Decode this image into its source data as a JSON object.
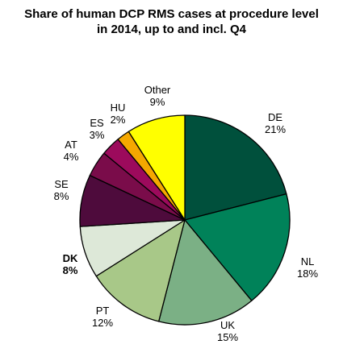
{
  "chart_data": {
    "type": "pie",
    "title_lines": [
      "Share of human DCP RMS cases at procedure level",
      "in 2014, up to and incl. Q4"
    ],
    "slices": [
      {
        "name": "DE",
        "value": 21,
        "label": "21%",
        "color": "#00503c",
        "bold": false
      },
      {
        "name": "NL",
        "value": 18,
        "label": "18%",
        "color": "#008259",
        "bold": false
      },
      {
        "name": "UK",
        "value": 15,
        "label": "15%",
        "color": "#7bb085",
        "bold": false
      },
      {
        "name": "PT",
        "value": 12,
        "label": "12%",
        "color": "#a8c888",
        "bold": false
      },
      {
        "name": "DK",
        "value": 8,
        "label": "8%",
        "color": "#dde8d8",
        "bold": true
      },
      {
        "name": "SE",
        "value": 8,
        "label": "8%",
        "color": "#4e0b3c",
        "bold": false
      },
      {
        "name": "AT",
        "value": 4,
        "label": "4%",
        "color": "#7a0c4a",
        "bold": false
      },
      {
        "name": "ES",
        "value": 3,
        "label": "3%",
        "color": "#9c0a5c",
        "bold": false
      },
      {
        "name": "HU",
        "value": 2,
        "label": "2%",
        "color": "#f5a800",
        "bold": false
      },
      {
        "name": "Other",
        "value": 9,
        "label": "9%",
        "color": "#ffff00",
        "bold": false
      }
    ],
    "legend": "none",
    "start_angle_deg": 0,
    "direction": "clockwise",
    "stroke_color": "#000000"
  }
}
